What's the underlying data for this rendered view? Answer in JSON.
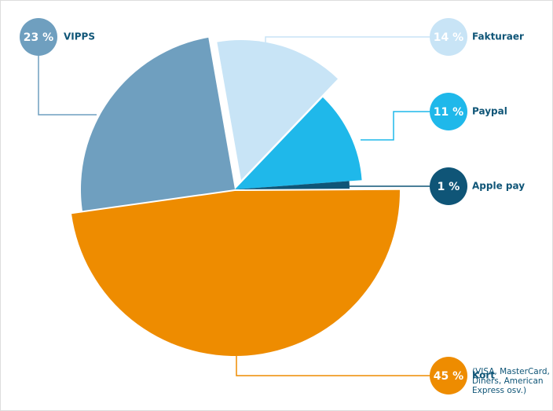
{
  "chart_data": {
    "type": "pie",
    "categories": [
      "VIPPS",
      "Fakturaer",
      "Paypal",
      "Apple pay",
      "Kort"
    ],
    "values": [
      23,
      14,
      11,
      1,
      45
    ],
    "value_labels": [
      "23 %",
      "14 %",
      "11 %",
      "1 %",
      "45 %"
    ],
    "colors": [
      "#6f9fbf",
      "#c8e4f6",
      "#1fb8ea",
      "#0f5577",
      "#ee8c00"
    ],
    "annotation": "(VISA, MasterCard, Diners, American Express osv.)"
  }
}
